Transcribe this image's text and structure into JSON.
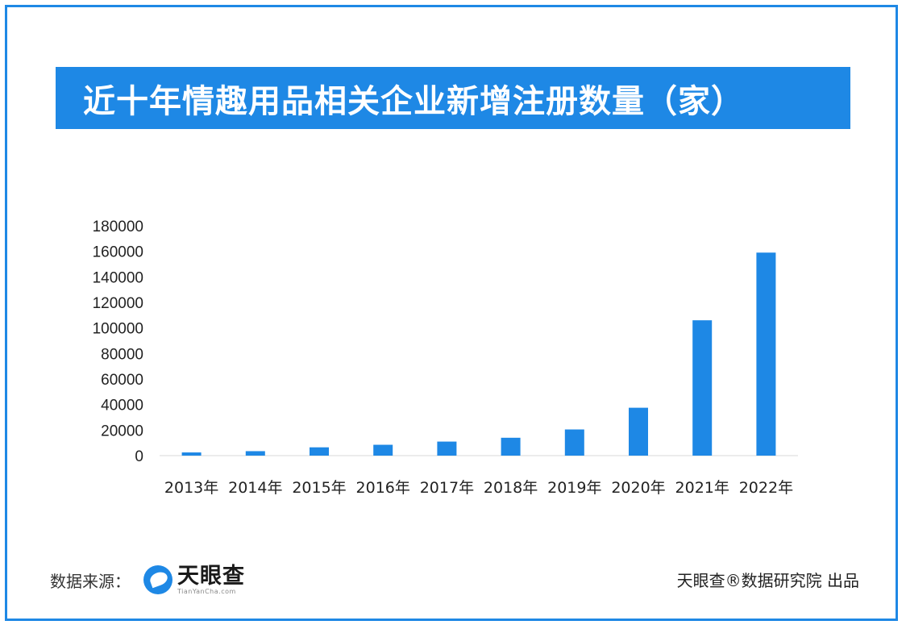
{
  "title": "近十年情趣用品相关企业新增注册数量（家）",
  "footer": {
    "source_label": "数据来源：",
    "logo_name": "天眼查",
    "logo_domain": "TianYanCha.com",
    "credit": "天眼查®数据研究院 出品"
  },
  "colors": {
    "accent": "#1e88e5",
    "bar": "#1e88e5",
    "axis_line": "#d9d9d9"
  },
  "chart_data": {
    "type": "bar",
    "title": "近十年情趣用品相关企业新增注册数量（家）",
    "categories": [
      "2013年",
      "2014年",
      "2015年",
      "2016年",
      "2017年",
      "2018年",
      "2019年",
      "2020年",
      "2021年",
      "2022年"
    ],
    "values": [
      2500,
      3500,
      6500,
      8500,
      11000,
      14000,
      20500,
      37500,
      106000,
      159000
    ],
    "ylim": [
      0,
      180000
    ],
    "yticks": [
      0,
      20000,
      40000,
      60000,
      80000,
      100000,
      120000,
      140000,
      160000,
      180000
    ],
    "grid": false,
    "legend": "none"
  }
}
